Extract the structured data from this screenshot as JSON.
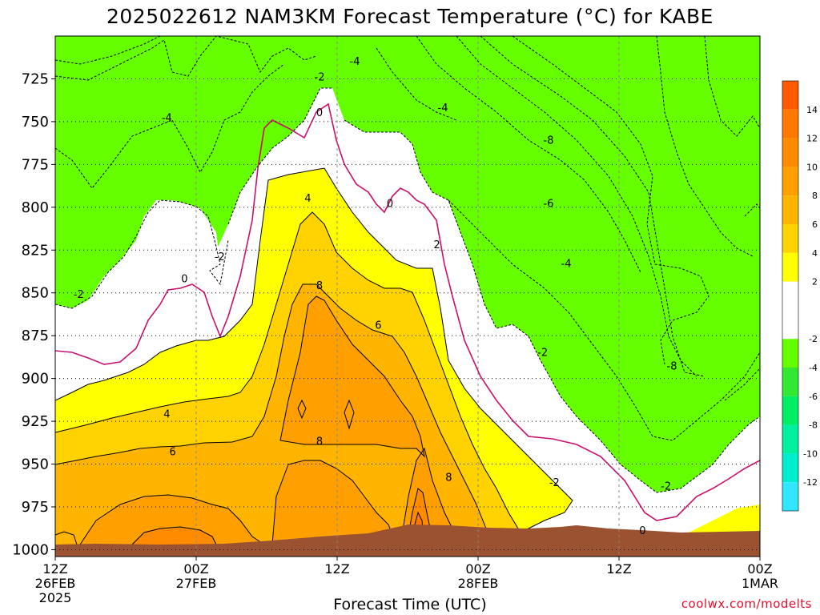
{
  "title": "2025022612 NAM3KM Forecast Temperature (°C) for KABE",
  "credit": "coolwx.com/modelts",
  "colors": {
    "ground": "#9b5230",
    "freezing_line": "#c8106e",
    "contour": "#000000"
  },
  "chart_data": {
    "type": "heatmap",
    "title": "2025022612 NAM3KM Forecast Temperature (°C) for KABE",
    "xlabel": "Forecast Time (UTC)",
    "ylabel": "",
    "x_ticks": [
      {
        "hour": 0,
        "label1": "12Z",
        "label2": "26FEB",
        "label3": "2025"
      },
      {
        "hour": 12,
        "label1": "00Z",
        "label2": "27FEB",
        "label3": ""
      },
      {
        "hour": 24,
        "label1": "12Z",
        "label2": "",
        "label3": ""
      },
      {
        "hour": 36,
        "label1": "00Z",
        "label2": "28FEB",
        "label3": ""
      },
      {
        "hour": 48,
        "label1": "12Z",
        "label2": "",
        "label3": ""
      },
      {
        "hour": 60,
        "label1": "00Z",
        "label2": "1MAR",
        "label3": ""
      }
    ],
    "xlim": [
      0,
      60
    ],
    "y_ticks": [
      "725",
      "750",
      "775",
      "800",
      "825",
      "850",
      "875",
      "900",
      "925",
      "950",
      "975",
      "1000"
    ],
    "ylim": [
      1004,
      700
    ],
    "colorbar": {
      "labels": [
        "14",
        "12",
        "10",
        "8",
        "6",
        "4",
        "2",
        "-2",
        "-4",
        "-6",
        "-8",
        "-10",
        "-12"
      ],
      "bands": [
        {
          "min": 14,
          "max": 16,
          "color": "#ff5a00"
        },
        {
          "min": 12,
          "max": 14,
          "color": "#ff7800"
        },
        {
          "min": 10,
          "max": 12,
          "color": "#ff8c00"
        },
        {
          "min": 8,
          "max": 10,
          "color": "#ffa000"
        },
        {
          "min": 6,
          "max": 8,
          "color": "#ffb400"
        },
        {
          "min": 4,
          "max": 6,
          "color": "#ffd200"
        },
        {
          "min": 2,
          "max": 4,
          "color": "#ffff00"
        },
        {
          "min": -2,
          "max": 2,
          "color": "#ffffff"
        },
        {
          "min": -4,
          "max": -2,
          "color": "#66ff00"
        },
        {
          "min": -6,
          "max": -4,
          "color": "#33e833"
        },
        {
          "min": -8,
          "max": -6,
          "color": "#00ee66"
        },
        {
          "min": -10,
          "max": -8,
          "color": "#00f0a0"
        },
        {
          "min": -12,
          "max": -10,
          "color": "#00eed0"
        },
        {
          "min": -14,
          "max": -12,
          "color": "#33e6ff"
        }
      ]
    },
    "contour_labels": [
      {
        "text": "-4",
        "hour": 25.5,
        "p": 715
      },
      {
        "text": "-2",
        "hour": 22.5,
        "p": 724
      },
      {
        "text": "0",
        "hour": 22.5,
        "p": 745
      },
      {
        "text": "-4",
        "hour": 33,
        "p": 742
      },
      {
        "text": "-4",
        "hour": 9.5,
        "p": 748
      },
      {
        "text": "-8",
        "hour": 42,
        "p": 761
      },
      {
        "text": "4",
        "hour": 21.5,
        "p": 795
      },
      {
        "text": "0",
        "hour": 28.5,
        "p": 798
      },
      {
        "text": "-6",
        "hour": 42,
        "p": 798
      },
      {
        "text": "2",
        "hour": 32.5,
        "p": 822
      },
      {
        "text": "-2",
        "hour": 14,
        "p": 829
      },
      {
        "text": "-4",
        "hour": 43.5,
        "p": 833
      },
      {
        "text": "0",
        "hour": 11,
        "p": 842
      },
      {
        "text": "8",
        "hour": 22.5,
        "p": 846
      },
      {
        "text": "-2",
        "hour": 2,
        "p": 851
      },
      {
        "text": "6",
        "hour": 27.5,
        "p": 869
      },
      {
        "text": "-2",
        "hour": 41.5,
        "p": 885
      },
      {
        "text": "-8",
        "hour": 52.5,
        "p": 893
      },
      {
        "text": "4",
        "hour": 9.5,
        "p": 921
      },
      {
        "text": "8",
        "hour": 22.5,
        "p": 937
      },
      {
        "text": "6",
        "hour": 10,
        "p": 943
      },
      {
        "text": "8",
        "hour": 33.5,
        "p": 958
      },
      {
        "text": "-2",
        "hour": 42.5,
        "p": 961
      },
      {
        "text": "-2",
        "hour": 52,
        "p": 963
      },
      {
        "text": "0",
        "hour": 50,
        "p": 989
      }
    ]
  }
}
